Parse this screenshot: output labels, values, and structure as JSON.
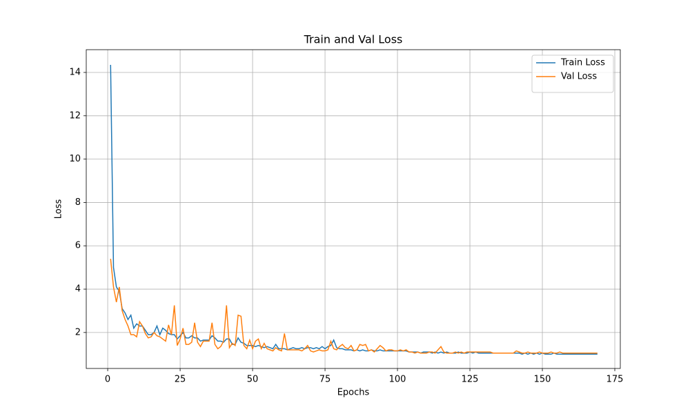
{
  "chart_data": {
    "type": "line",
    "title": "Train and Val Loss",
    "xlabel": "Epochs",
    "ylabel": "Loss",
    "x": [
      1,
      2,
      3,
      4,
      5,
      6,
      7,
      8,
      9,
      10,
      11,
      12,
      13,
      14,
      15,
      16,
      17,
      18,
      19,
      20,
      21,
      22,
      23,
      24,
      25,
      26,
      27,
      28,
      29,
      30,
      31,
      32,
      33,
      34,
      35,
      36,
      37,
      38,
      39,
      40,
      41,
      42,
      43,
      44,
      45,
      46,
      47,
      48,
      49,
      50,
      51,
      52,
      53,
      54,
      55,
      56,
      57,
      58,
      59,
      60,
      61,
      62,
      63,
      64,
      65,
      66,
      67,
      68,
      69,
      70,
      71,
      72,
      73,
      74,
      75,
      76,
      77,
      78,
      79,
      80,
      81,
      82,
      83,
      84,
      85,
      86,
      87,
      88,
      89,
      90,
      91,
      92,
      93,
      94,
      95,
      96,
      97,
      98,
      99,
      100,
      101,
      102,
      103,
      104,
      105,
      106,
      107,
      108,
      109,
      110,
      111,
      112,
      113,
      114,
      115,
      116,
      117,
      118,
      119,
      120,
      121,
      122,
      123,
      124,
      125,
      126,
      127,
      128,
      129,
      130,
      131,
      132,
      133,
      134,
      135,
      136,
      137,
      138,
      139,
      140,
      141,
      142,
      143,
      144,
      145,
      146,
      147,
      148,
      149,
      150,
      151,
      152,
      153,
      154,
      155,
      156,
      157,
      158,
      159,
      160,
      161,
      162,
      163,
      164,
      165,
      166,
      167,
      168,
      169
    ],
    "series": [
      {
        "name": "Train Loss",
        "color": "#1f77b4",
        "values": [
          14.35,
          5.0,
          4.1,
          3.9,
          3.1,
          2.9,
          2.6,
          2.8,
          2.2,
          2.4,
          2.3,
          2.3,
          2.1,
          1.9,
          1.9,
          2.0,
          2.3,
          1.9,
          2.2,
          2.1,
          1.95,
          1.9,
          1.9,
          1.7,
          1.85,
          2.0,
          1.75,
          1.75,
          1.85,
          1.75,
          1.75,
          1.6,
          1.65,
          1.65,
          1.65,
          1.85,
          1.75,
          1.6,
          1.6,
          1.55,
          1.7,
          1.7,
          1.45,
          1.45,
          1.75,
          1.55,
          1.5,
          1.4,
          1.4,
          1.4,
          1.35,
          1.4,
          1.35,
          1.3,
          1.35,
          1.3,
          1.25,
          1.45,
          1.25,
          1.25,
          1.25,
          1.2,
          1.25,
          1.3,
          1.25,
          1.25,
          1.3,
          1.25,
          1.3,
          1.3,
          1.25,
          1.3,
          1.25,
          1.35,
          1.25,
          1.35,
          1.4,
          1.65,
          1.3,
          1.25,
          1.25,
          1.2,
          1.2,
          1.2,
          1.15,
          1.2,
          1.15,
          1.2,
          1.15,
          1.15,
          1.2,
          1.15,
          1.15,
          1.2,
          1.15,
          1.15,
          1.15,
          1.15,
          1.15,
          1.15,
          1.15,
          1.15,
          1.15,
          1.1,
          1.1,
          1.1,
          1.1,
          1.05,
          1.1,
          1.1,
          1.1,
          1.05,
          1.1,
          1.05,
          1.1,
          1.05,
          1.1,
          1.05,
          1.05,
          1.05,
          1.1,
          1.05,
          1.05,
          1.05,
          1.1,
          1.05,
          1.1,
          1.05,
          1.05,
          1.05,
          1.05,
          1.05,
          1.05,
          1.05,
          1.05,
          1.05,
          1.05,
          1.05,
          1.05,
          1.05,
          1.05,
          1.05,
          1.0,
          1.05,
          1.0,
          1.05,
          1.0,
          1.05,
          1.0,
          1.05,
          1.0,
          1.0,
          1.0,
          1.05,
          1.0,
          1.0,
          1.0,
          1.0,
          1.0,
          1.0,
          1.0,
          1.0,
          1.0,
          1.0,
          1.0,
          1.0,
          1.0,
          1.0,
          1.0
        ]
      },
      {
        "name": "Val Loss",
        "color": "#ff7f0e",
        "values": [
          5.4,
          4.1,
          3.4,
          4.1,
          3.0,
          2.6,
          2.3,
          1.9,
          1.9,
          1.8,
          2.5,
          2.3,
          1.95,
          1.75,
          1.8,
          2.0,
          1.85,
          1.8,
          1.7,
          1.6,
          2.35,
          1.9,
          3.25,
          1.4,
          1.7,
          2.2,
          1.45,
          1.45,
          1.55,
          2.45,
          1.55,
          1.35,
          1.6,
          1.6,
          1.6,
          2.45,
          1.45,
          1.25,
          1.35,
          1.6,
          3.25,
          1.3,
          1.5,
          1.4,
          2.8,
          2.75,
          1.4,
          1.25,
          1.65,
          1.25,
          1.6,
          1.7,
          1.25,
          1.5,
          1.25,
          1.2,
          1.15,
          1.3,
          1.2,
          1.15,
          1.95,
          1.2,
          1.2,
          1.2,
          1.2,
          1.2,
          1.15,
          1.25,
          1.4,
          1.15,
          1.1,
          1.15,
          1.2,
          1.15,
          1.15,
          1.2,
          1.6,
          1.25,
          1.2,
          1.35,
          1.45,
          1.3,
          1.25,
          1.4,
          1.15,
          1.2,
          1.45,
          1.4,
          1.45,
          1.15,
          1.2,
          1.1,
          1.25,
          1.4,
          1.3,
          1.15,
          1.2,
          1.2,
          1.15,
          1.15,
          1.2,
          1.15,
          1.2,
          1.1,
          1.1,
          1.05,
          1.1,
          1.05,
          1.05,
          1.05,
          1.1,
          1.1,
          1.05,
          1.2,
          1.35,
          1.1,
          1.05,
          1.05,
          1.05,
          1.1,
          1.05,
          1.1,
          1.05,
          1.1,
          1.1,
          1.1,
          1.1,
          1.1,
          1.1,
          1.1,
          1.1,
          1.1,
          1.05,
          1.05,
          1.05,
          1.05,
          1.05,
          1.05,
          1.05,
          1.05,
          1.15,
          1.1,
          1.05,
          1.05,
          1.1,
          1.05,
          1.05,
          1.05,
          1.1,
          1.05,
          1.05,
          1.05,
          1.1,
          1.05,
          1.05,
          1.1,
          1.05,
          1.05,
          1.05,
          1.05,
          1.05,
          1.05,
          1.05,
          1.05,
          1.05,
          1.05,
          1.05,
          1.05,
          1.05
        ]
      }
    ],
    "xlim": [
      -7.4,
      176.9
    ],
    "ylim": [
      0.34,
      15.05
    ],
    "xticks": [
      0,
      25,
      50,
      75,
      100,
      125,
      150,
      175
    ],
    "yticks": [
      2,
      4,
      6,
      8,
      10,
      12,
      14
    ],
    "grid": true,
    "legend": "upper right"
  }
}
